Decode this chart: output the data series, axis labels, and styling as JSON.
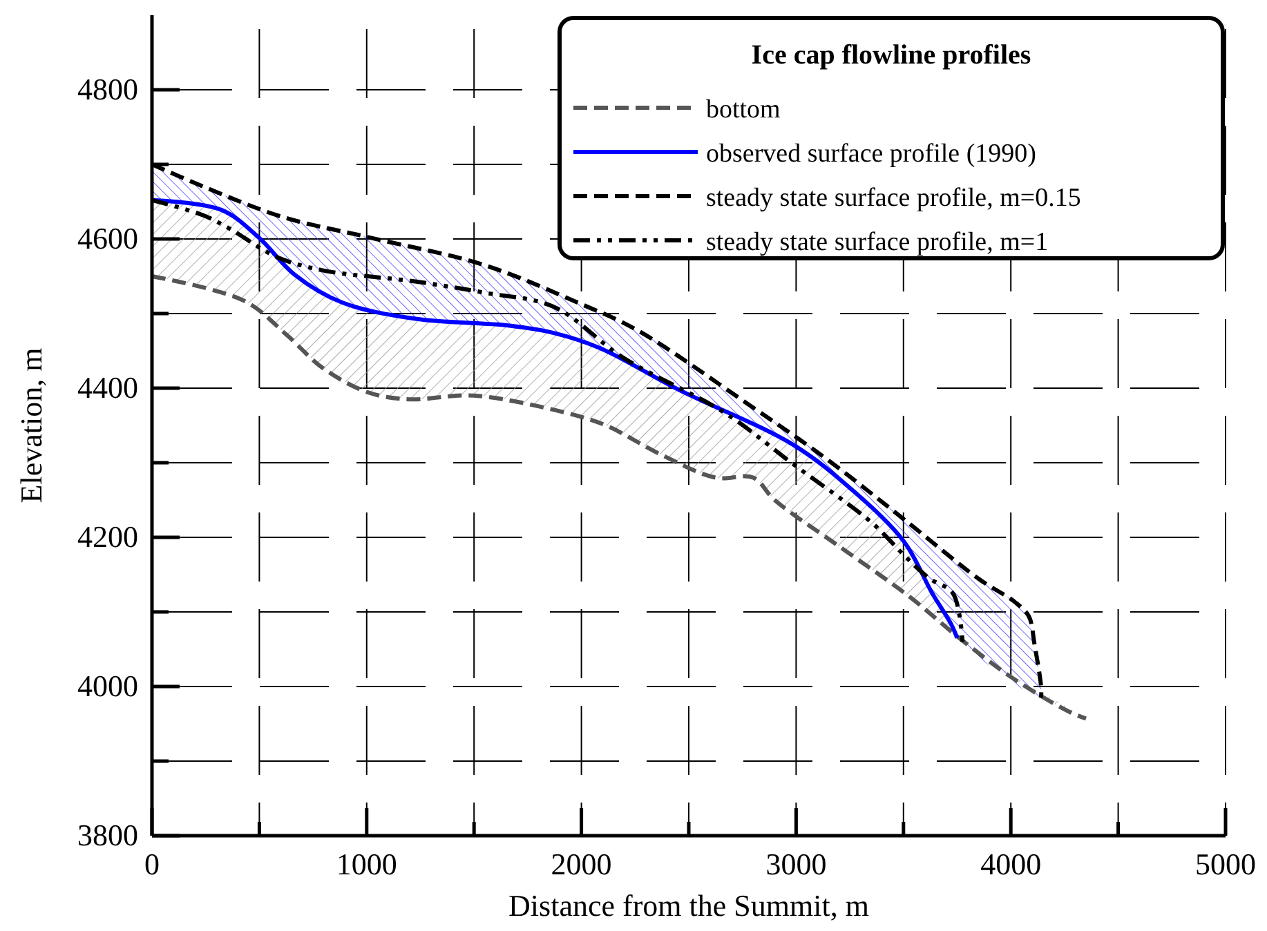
{
  "chart_data": {
    "type": "line",
    "xlabel": "Distance from the Summit, m",
    "ylabel": "Elevation, m",
    "legend_title": "Ice cap flowline profiles",
    "legend": "top right",
    "grid": true,
    "xlim": [
      0,
      5000
    ],
    "xticks": [
      0,
      {
        "value": 500,
        "label": null
      },
      1000,
      {
        "value": 1500,
        "label": null
      },
      2000,
      {
        "value": 2500,
        "label": null
      },
      3000,
      {
        "value": 3500,
        "label": null
      },
      4000,
      {
        "value": 4500,
        "label": null
      },
      5000
    ],
    "ylim": [
      3800,
      4900
    ],
    "yticks": [
      3800,
      {
        "value": 3900,
        "label": null
      },
      4000,
      {
        "value": 4100,
        "label": null
      },
      4200,
      {
        "value": 4300,
        "label": null
      },
      4400,
      {
        "value": 4500,
        "label": null
      },
      4600,
      {
        "value": 4700,
        "label": null
      },
      4800
    ],
    "series": [
      {
        "name": "bottom",
        "color": "#555555",
        "line_style": "dashed",
        "x": [
          0,
          430,
          625,
          800,
          1010,
          1200,
          1500,
          1980,
          2130,
          2370,
          2625,
          2800,
          2900,
          3205,
          3530,
          3760,
          4020,
          4280,
          4350
        ],
        "values": [
          4550,
          4517,
          4472,
          4426,
          4394,
          4385,
          4390,
          4363,
          4348,
          4311,
          4280,
          4280,
          4250,
          4187,
          4120,
          4065,
          4009,
          3965,
          3957
        ]
      },
      {
        "name": "observed surface profile (1990)",
        "color": "#0000ff",
        "line_style": "solid",
        "x": [
          0,
          323,
          497,
          665,
          884,
          1226,
          1658,
          1871,
          2084,
          2452,
          2987,
          3271,
          3503,
          3632,
          3723,
          3750
        ],
        "values": [
          4652,
          4639,
          4602,
          4552,
          4515,
          4493,
          4484,
          4474,
          4454,
          4398,
          4324,
          4261,
          4194,
          4126,
          4083,
          4065
        ]
      },
      {
        "name": "steady state surface profile, m=0.15",
        "color": "#000000",
        "line_style": "dashed",
        "x": [
          0,
          580,
          1013,
          1548,
          1980,
          2258,
          2774,
          3142,
          3503,
          3852,
          4020,
          4084,
          4110,
          4142,
          4140
        ],
        "values": [
          4700,
          4632,
          4602,
          4565,
          4515,
          4478,
          4379,
          4305,
          4224,
          4144,
          4113,
          4094,
          4057,
          3996,
          3985
        ]
      },
      {
        "name": "steady state surface profile, m=1",
        "color": "#000000",
        "line_style": "dotted",
        "x": [
          0,
          237,
          366,
          580,
          794,
          1226,
          1548,
          1871,
          2194,
          2667,
          2987,
          3355,
          3503,
          3620,
          3730,
          3775
        ],
        "values": [
          4652,
          4632,
          4613,
          4576,
          4558,
          4543,
          4528,
          4509,
          4441,
          4367,
          4298,
          4219,
          4176,
          4145,
          4125,
          4060
        ]
      }
    ]
  }
}
